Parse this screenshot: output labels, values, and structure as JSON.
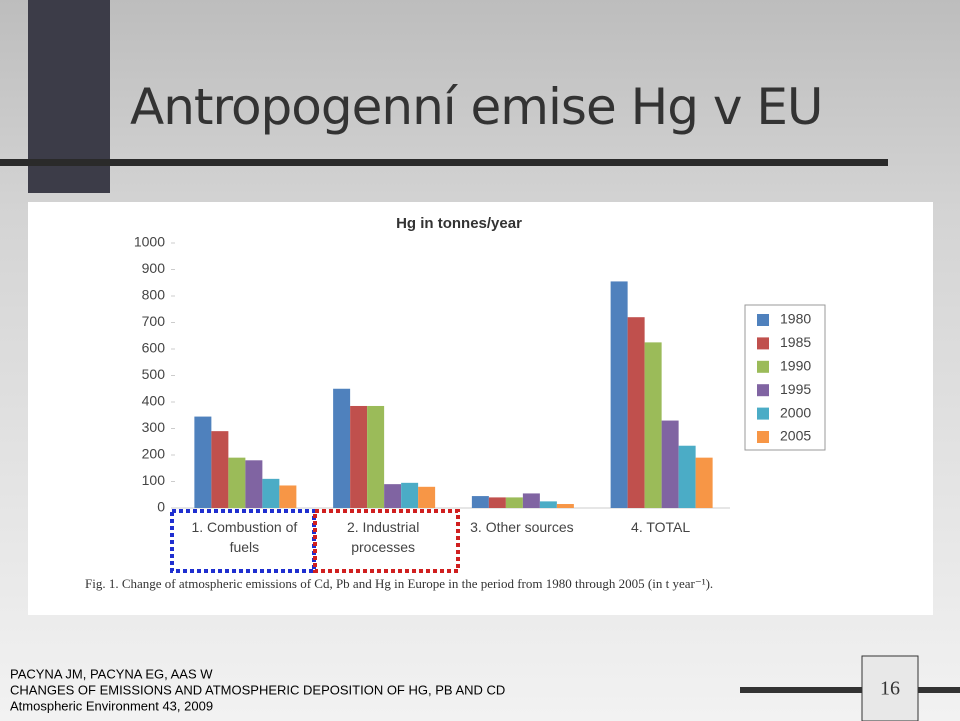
{
  "slide": {
    "title": "Antropogenní emise Hg v EU",
    "caption": "Fig. 1. Change of atmospheric emissions of Cd, Pb and Hg in Europe in the period from 1980 through 2005 (in t year⁻¹).",
    "citation": [
      "PACYNA JM, PACYNA EG, AAS W",
      "CHANGES OF EMISSIONS AND ATMOSPHERIC DEPOSITION OF HG, PB AND CD",
      "Atmospheric Environment 43, 2009"
    ],
    "page_number": "16"
  },
  "chart_data": {
    "type": "bar",
    "title": "Hg in tonnes/year",
    "categories": [
      "1. Combustion of fuels",
      "2. Industrial processes",
      "3. Other sources",
      "4. TOTAL"
    ],
    "series": [
      {
        "name": "1980",
        "color": "#4f81bd",
        "values": [
          345,
          450,
          45,
          855
        ]
      },
      {
        "name": "1985",
        "color": "#c0504d",
        "values": [
          290,
          385,
          40,
          720
        ]
      },
      {
        "name": "1990",
        "color": "#9bbb59",
        "values": [
          190,
          385,
          40,
          625
        ]
      },
      {
        "name": "1995",
        "color": "#8064a2",
        "values": [
          180,
          90,
          55,
          330
        ]
      },
      {
        "name": "2000",
        "color": "#4bacc6",
        "values": [
          110,
          95,
          25,
          235
        ]
      },
      {
        "name": "2005",
        "color": "#f79646",
        "values": [
          85,
          80,
          15,
          190
        ]
      }
    ],
    "ylim": [
      0,
      1000
    ],
    "yticks": [
      0,
      100,
      200,
      300,
      400,
      500,
      600,
      700,
      800,
      900,
      1000
    ],
    "grid": false,
    "legend": "right"
  }
}
